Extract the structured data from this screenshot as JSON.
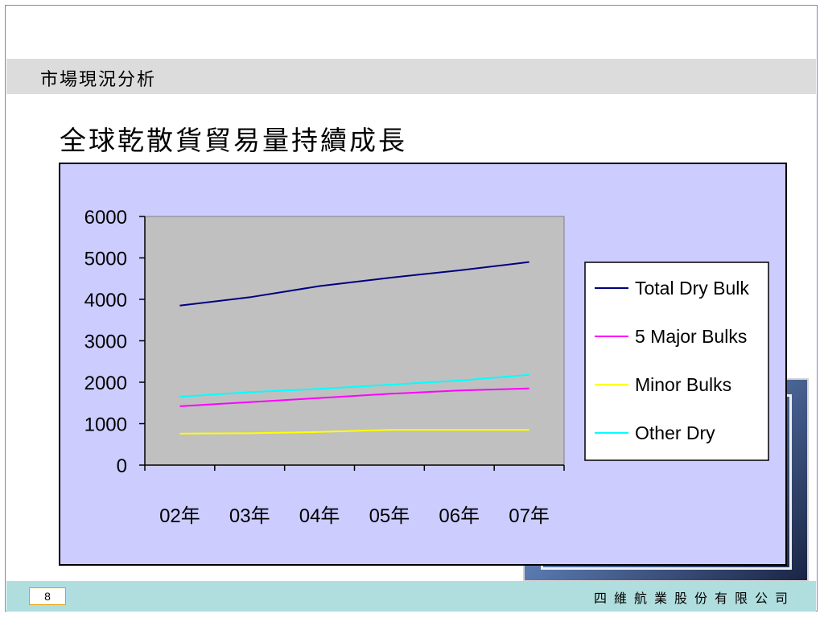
{
  "section_title": "市場現況分析",
  "heading": "全球乾散貨貿易量持續成長",
  "footer": {
    "page_number": "8",
    "company": "四維航業股份有限公司"
  },
  "colors": {
    "total_dry_bulk": "#000080",
    "major_bulks": "#ff00ff",
    "minor_bulks": "#ffff00",
    "other_dry": "#00ffff",
    "plot_bg": "#c0c0c0",
    "chart_bg": "#ccccff"
  },
  "chart_data": {
    "type": "line",
    "categories": [
      "02年",
      "03年",
      "04年",
      "05年",
      "06年",
      "07年"
    ],
    "ylim": [
      0,
      6000
    ],
    "yticks": [
      0,
      1000,
      2000,
      3000,
      4000,
      5000,
      6000
    ],
    "grid": false,
    "legend": "right",
    "series": [
      {
        "name": "Total Dry Bulk",
        "values": [
          3850,
          4050,
          4320,
          4520,
          4700,
          4900
        ]
      },
      {
        "name": "5 Major Bulks",
        "values": [
          1420,
          1520,
          1620,
          1720,
          1800,
          1850
        ]
      },
      {
        "name": "Minor Bulks",
        "values": [
          760,
          770,
          800,
          850,
          850,
          850
        ]
      },
      {
        "name": "Other Dry",
        "values": [
          1650,
          1760,
          1840,
          1940,
          2040,
          2180
        ]
      }
    ]
  }
}
